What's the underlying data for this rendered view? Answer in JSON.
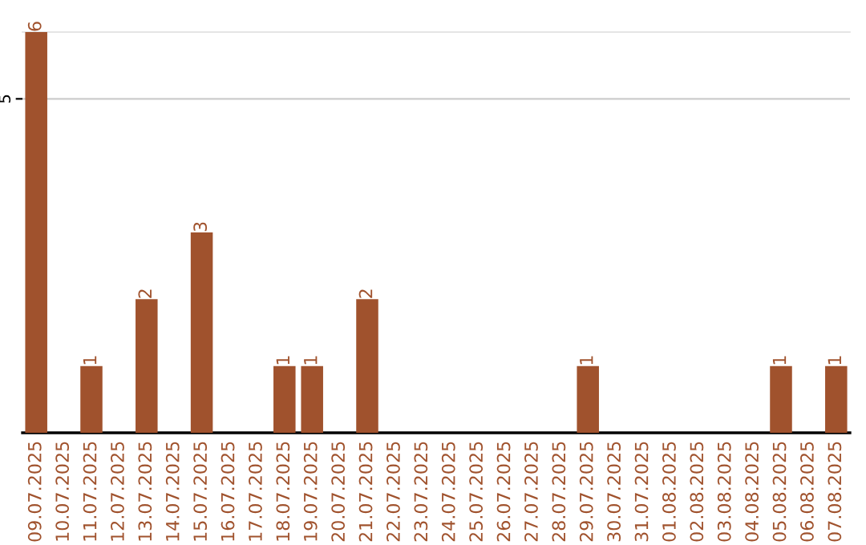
{
  "chart_data": {
    "type": "bar",
    "categories": [
      "09.07.2025",
      "10.07.2025",
      "11.07.2025",
      "12.07.2025",
      "13.07.2025",
      "14.07.2025",
      "15.07.2025",
      "16.07.2025",
      "17.07.2025",
      "18.07.2025",
      "19.07.2025",
      "20.07.2025",
      "21.07.2025",
      "22.07.2025",
      "23.07.2025",
      "24.07.2025",
      "25.07.2025",
      "26.07.2025",
      "27.07.2025",
      "28.07.2025",
      "29.07.2025",
      "30.07.2025",
      "31.07.2025",
      "01.08.2025",
      "02.08.2025",
      "03.08.2025",
      "04.08.2025",
      "05.08.2025",
      "06.08.2025",
      "07.08.2025"
    ],
    "values": [
      6,
      0,
      1,
      0,
      2,
      0,
      3,
      0,
      0,
      1,
      1,
      0,
      2,
      0,
      0,
      0,
      0,
      0,
      0,
      0,
      1,
      0,
      0,
      0,
      0,
      0,
      0,
      1,
      0,
      1
    ],
    "value_labels": [
      "6",
      null,
      "1",
      null,
      "2",
      null,
      "3",
      null,
      null,
      "1",
      "1",
      null,
      "2",
      null,
      null,
      null,
      null,
      null,
      null,
      null,
      "1",
      null,
      null,
      null,
      null,
      null,
      null,
      "1",
      null,
      "1"
    ],
    "color": "#a0522d",
    "ylim": [
      0,
      6
    ],
    "yticks": [
      5
    ],
    "grid": "y"
  }
}
